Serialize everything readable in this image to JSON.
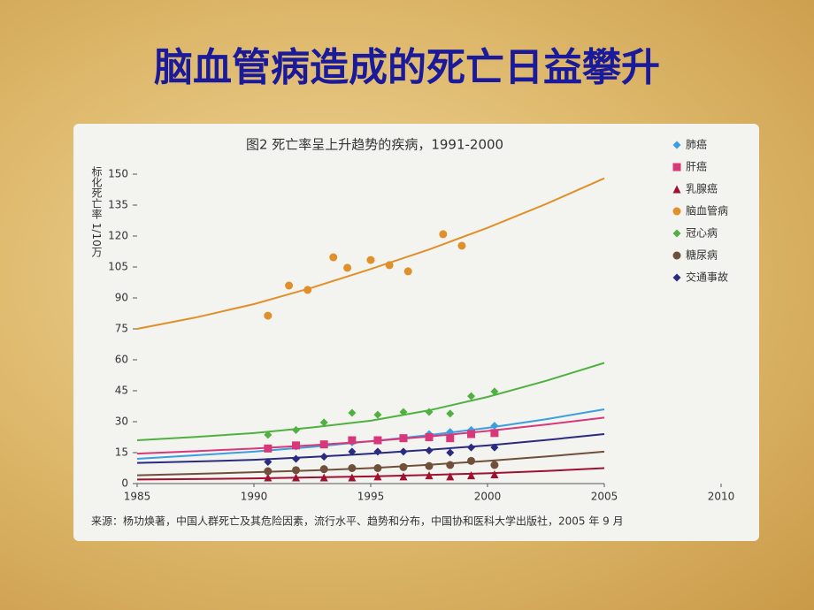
{
  "page_title": "脑血管病造成的死亡日益攀升",
  "chart_data": {
    "type": "scatter-trend",
    "title": "图2  死亡率呈上升趋势的疾病，1991-2000",
    "y_label": "标化死亡率  1/10万",
    "source": "来源：杨功焕著，中国人群死亡及其危险因素，流行水平、趋势和分布，中国协和医科大学出版社，2005 年 9 月",
    "xlim": [
      1985,
      2010
    ],
    "xticks": [
      1985,
      1990,
      1995,
      2000,
      2005,
      2010
    ],
    "ylim": [
      0,
      150
    ],
    "yticks": [
      0,
      15,
      30,
      45,
      60,
      75,
      90,
      105,
      120,
      135,
      150
    ],
    "fit_x": [
      1985,
      1987.5,
      1990,
      1992.5,
      1995,
      1997.5,
      2000,
      2002.5,
      2005
    ],
    "series": [
      {
        "name": "肺癌",
        "color": "#3a9ee0",
        "marker": "diamond",
        "x": [
          1990.6,
          1991.8,
          1993.0,
          1994.2,
          1995.3,
          1996.4,
          1997.5,
          1998.4,
          1999.3,
          2000.3
        ],
        "values": [
          17,
          18,
          19,
          20,
          21,
          22,
          24,
          25,
          26,
          28
        ],
        "fit": [
          12,
          13.7,
          15.5,
          17.8,
          20.5,
          23.5,
          27,
          31.2,
          36
        ]
      },
      {
        "name": "肝癌",
        "color": "#d8387a",
        "marker": "square",
        "x": [
          1990.6,
          1991.8,
          1993.0,
          1994.2,
          1995.3,
          1996.4,
          1997.5,
          1998.4,
          1999.3,
          2000.3
        ],
        "values": [
          17,
          18.5,
          19,
          21,
          21,
          22,
          22.5,
          22,
          24,
          24.5
        ],
        "fit": [
          14.5,
          15.7,
          17,
          18.6,
          20.5,
          22.8,
          25.5,
          28.6,
          32
        ]
      },
      {
        "name": "乳腺癌",
        "color": "#a01030",
        "marker": "triangle",
        "x": [
          1990.6,
          1991.8,
          1993.0,
          1994.2,
          1995.3,
          1996.4,
          1997.5,
          1998.4,
          1999.3,
          2000.3
        ],
        "values": [
          3,
          3,
          3,
          3,
          3.5,
          3.5,
          4,
          3.5,
          4,
          4.5
        ],
        "fit": [
          2,
          2.2,
          2.5,
          3,
          3.5,
          4.2,
          5,
          6.1,
          7.5
        ]
      },
      {
        "name": "脑血管病",
        "color": "#e0902a",
        "marker": "circle",
        "x": [
          1990.6,
          1991.5,
          1992.3,
          1993.4,
          1994.0,
          1995.0,
          1995.8,
          1996.6,
          1998.1,
          1998.9
        ],
        "values": [
          81.4,
          96,
          93.9,
          109.7,
          104.6,
          108.4,
          105.9,
          102.9,
          120.9,
          115.3
        ],
        "fit": [
          75,
          80.5,
          87,
          95,
          104,
          113.5,
          124,
          135.5,
          148
        ]
      },
      {
        "name": "冠心病",
        "color": "#50b040",
        "marker": "diamond",
        "x": [
          1990.6,
          1991.8,
          1993.0,
          1994.2,
          1995.3,
          1996.4,
          1997.5,
          1998.4,
          1999.3,
          2000.3
        ],
        "values": [
          23.6,
          26,
          29.6,
          34.3,
          33.4,
          34.7,
          34.7,
          33.9,
          42.4,
          44.6
        ],
        "fit": [
          21,
          22.6,
          24.5,
          27.2,
          30.5,
          35.5,
          42,
          49.8,
          58.5
        ]
      },
      {
        "name": "糖尿病",
        "color": "#70503a",
        "marker": "circle",
        "x": [
          1990.6,
          1991.8,
          1993.0,
          1994.2,
          1995.3,
          1996.4,
          1997.5,
          1998.4,
          1999.3,
          2000.3
        ],
        "values": [
          6,
          6.5,
          7,
          7.5,
          7.5,
          8,
          8.5,
          9,
          11,
          9
        ],
        "fit": [
          4,
          4.7,
          5.5,
          6.4,
          7.5,
          9.1,
          11,
          13.1,
          15.5
        ]
      },
      {
        "name": "交通事故",
        "color": "#2a2a80",
        "marker": "diamond",
        "x": [
          1990.6,
          1991.8,
          1993.0,
          1994.2,
          1995.3,
          1996.4,
          1997.5,
          1998.4,
          1999.3,
          2000.3
        ],
        "values": [
          10.5,
          12,
          13,
          15.5,
          15.5,
          15.5,
          16,
          15,
          17.5,
          17.5
        ],
        "fit": [
          10,
          10.7,
          11.5,
          12.9,
          14.5,
          16.4,
          18.5,
          21.1,
          24
        ]
      }
    ]
  }
}
